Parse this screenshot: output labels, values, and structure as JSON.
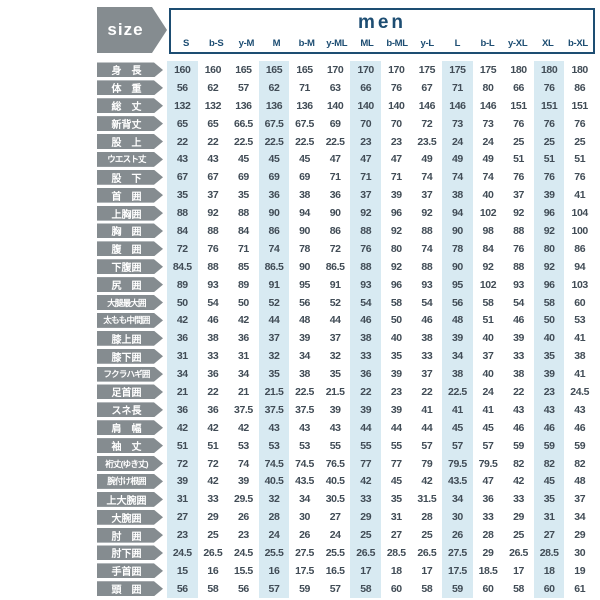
{
  "header": {
    "size_label": "size",
    "title": "men"
  },
  "colors": {
    "accent_navy": "#1d4d72",
    "label_gray": "#858c90",
    "highlight_blue": "#d8eaf2",
    "value_text": "#414c56"
  },
  "chart_data": {
    "type": "table",
    "title": "men",
    "columns": [
      "S",
      "b-S",
      "y-M",
      "M",
      "b-M",
      "y-ML",
      "ML",
      "b-ML",
      "y-L",
      "L",
      "b-L",
      "y-XL",
      "XL",
      "b-XL"
    ],
    "highlighted_column_indices": [
      0,
      3,
      6,
      9,
      12
    ],
    "rows": [
      {
        "label": "身　長",
        "values": [
          160,
          160,
          165,
          165,
          165,
          170,
          170,
          170,
          175,
          175,
          175,
          180,
          180,
          180
        ]
      },
      {
        "label": "体　重",
        "values": [
          56,
          62,
          57,
          62,
          71,
          63,
          66,
          76,
          67,
          71,
          80,
          66,
          76,
          86
        ]
      },
      {
        "label": "総　丈",
        "values": [
          132,
          132,
          136,
          136,
          136,
          140,
          140,
          140,
          146,
          146,
          146,
          151,
          151,
          151
        ]
      },
      {
        "label": "新背丈",
        "values": [
          65,
          65,
          66.5,
          67.5,
          67.5,
          69,
          70,
          70,
          72,
          73,
          73,
          76,
          76,
          76
        ]
      },
      {
        "label": "股　上",
        "values": [
          22,
          22,
          22.5,
          22.5,
          22.5,
          22.5,
          23,
          23,
          23.5,
          24,
          24,
          25,
          25,
          25
        ]
      },
      {
        "label": "ウエスト丈",
        "values": [
          43,
          43,
          45,
          45,
          45,
          47,
          47,
          47,
          49,
          49,
          49,
          51,
          51,
          51
        ]
      },
      {
        "label": "股　下",
        "values": [
          67,
          67,
          69,
          69,
          69,
          71,
          71,
          71,
          74,
          74,
          74,
          76,
          76,
          76
        ]
      },
      {
        "label": "首　囲",
        "values": [
          35,
          37,
          35,
          36,
          38,
          36,
          37,
          39,
          37,
          38,
          40,
          37,
          39,
          41
        ]
      },
      {
        "label": "上胸囲",
        "values": [
          88,
          92,
          88,
          90,
          94,
          90,
          92,
          96,
          92,
          94,
          102,
          92,
          96,
          104
        ]
      },
      {
        "label": "胸　囲",
        "values": [
          84,
          88,
          84,
          86,
          90,
          86,
          88,
          92,
          88,
          90,
          98,
          88,
          92,
          100
        ]
      },
      {
        "label": "腹　囲",
        "values": [
          72,
          76,
          71,
          74,
          78,
          72,
          76,
          80,
          74,
          78,
          84,
          76,
          80,
          86
        ]
      },
      {
        "label": "下腹囲",
        "values": [
          84.5,
          88,
          85,
          86.5,
          90,
          86.5,
          88,
          92,
          88,
          90,
          92,
          88,
          92,
          94
        ]
      },
      {
        "label": "尻　囲",
        "values": [
          89,
          93,
          89,
          91,
          95,
          91,
          93,
          96,
          93,
          95,
          102,
          93,
          96,
          103
        ]
      },
      {
        "label": "大腿最大囲",
        "values": [
          50,
          54,
          50,
          52,
          56,
          52,
          54,
          58,
          54,
          56,
          58,
          54,
          58,
          60
        ]
      },
      {
        "label": "太もも中間囲",
        "values": [
          42,
          46,
          42,
          44,
          48,
          44,
          46,
          50,
          46,
          48,
          51,
          46,
          50,
          53
        ]
      },
      {
        "label": "膝上囲",
        "values": [
          36,
          38,
          36,
          37,
          39,
          37,
          38,
          40,
          38,
          39,
          40,
          39,
          40,
          41
        ]
      },
      {
        "label": "膝下囲",
        "values": [
          31,
          33,
          31,
          32,
          34,
          32,
          33,
          35,
          33,
          34,
          37,
          33,
          35,
          38
        ]
      },
      {
        "label": "フクラハギ囲",
        "values": [
          34,
          36,
          34,
          35,
          38,
          35,
          36,
          39,
          37,
          38,
          40,
          38,
          39,
          41
        ]
      },
      {
        "label": "足首囲",
        "values": [
          21,
          22,
          21,
          21.5,
          22.5,
          21.5,
          22,
          23,
          22,
          22.5,
          24,
          22,
          23,
          24.5
        ]
      },
      {
        "label": "スネ長",
        "values": [
          36,
          36,
          37.5,
          37.5,
          37.5,
          39,
          39,
          39,
          41,
          41,
          41,
          43,
          43,
          43
        ]
      },
      {
        "label": "肩　幅",
        "values": [
          42,
          42,
          42,
          43,
          43,
          43,
          44,
          44,
          44,
          45,
          45,
          46,
          46,
          46
        ]
      },
      {
        "label": "袖　丈",
        "values": [
          51,
          51,
          53,
          53,
          53,
          55,
          55,
          55,
          57,
          57,
          57,
          59,
          59,
          59
        ]
      },
      {
        "label": "裄丈(ゆき丈)",
        "values": [
          72,
          72,
          74,
          74.5,
          74.5,
          76.5,
          77,
          77,
          79,
          79.5,
          79.5,
          82,
          82,
          82
        ]
      },
      {
        "label": "腕付け根囲",
        "values": [
          39,
          42,
          39,
          40.5,
          43.5,
          40.5,
          42,
          45,
          42,
          43.5,
          47,
          42,
          45,
          48
        ]
      },
      {
        "label": "上大腕囲",
        "values": [
          31,
          33,
          29.5,
          32,
          34,
          30.5,
          33,
          35,
          31.5,
          34,
          36,
          33,
          35,
          37
        ]
      },
      {
        "label": "大腕囲",
        "values": [
          27,
          29,
          26,
          28,
          30,
          27,
          29,
          31,
          28,
          30,
          33,
          29,
          31,
          34
        ]
      },
      {
        "label": "肘　囲",
        "values": [
          23,
          25,
          23,
          24,
          26,
          24,
          25,
          27,
          25,
          26,
          28,
          25,
          27,
          29
        ]
      },
      {
        "label": "肘下囲",
        "values": [
          24.5,
          26.5,
          24.5,
          25.5,
          27.5,
          25.5,
          26.5,
          28.5,
          26.5,
          27.5,
          29,
          26.5,
          28.5,
          30
        ]
      },
      {
        "label": "手首囲",
        "values": [
          15,
          16,
          15.5,
          16,
          17.5,
          16.5,
          17,
          18,
          17,
          17.5,
          18.5,
          17,
          18,
          19
        ]
      },
      {
        "label": "頭　囲",
        "values": [
          56,
          58,
          56,
          57,
          59,
          57,
          58,
          60,
          58,
          59,
          60,
          58,
          60,
          61
        ]
      }
    ]
  }
}
